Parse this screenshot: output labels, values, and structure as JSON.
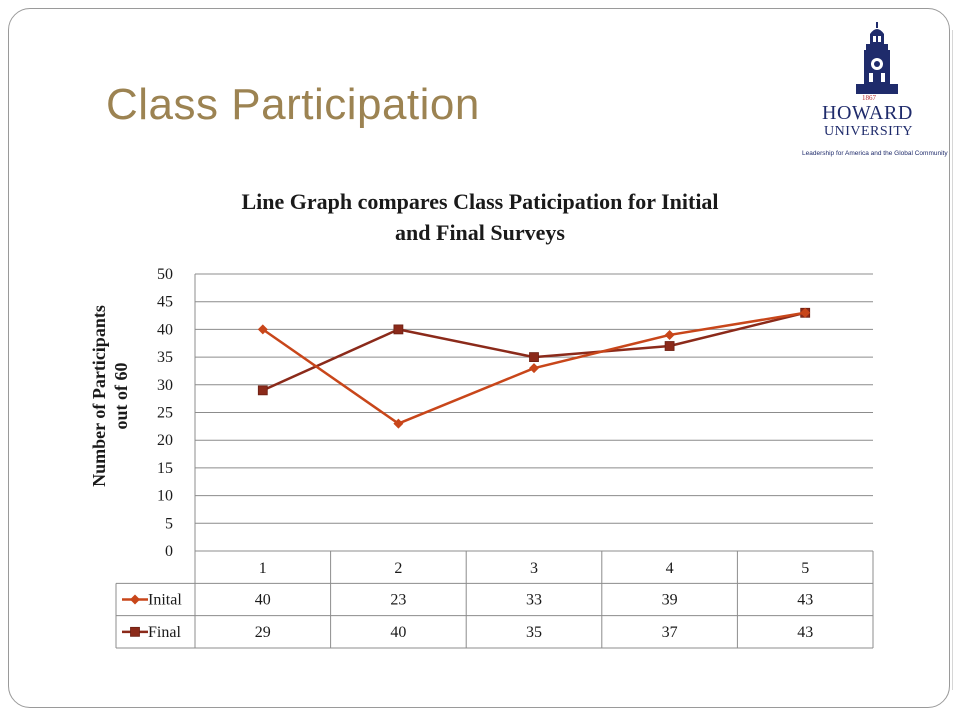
{
  "slide": {
    "title": "Class Participation"
  },
  "logo": {
    "year": "1867",
    "name": "HOWARD",
    "subtitle": "UNIVERSITY",
    "motto": "Leadership for America and the Global Community"
  },
  "colors": {
    "title": "#9c8352",
    "initial_series": "#c8461a",
    "final_series": "#8b2a1a",
    "logo_blue": "#1f2b6b"
  },
  "chart_data": {
    "type": "line",
    "title": "Line Graph compares Class Paticipation for Initial and Final Surveys",
    "title_lines": [
      "Line Graph compares Class Paticipation for Initial",
      "and Final Surveys"
    ],
    "ylabel_lines": [
      "Number of Participants",
      "out of 60"
    ],
    "xlabel": "",
    "categories": [
      "1",
      "2",
      "3",
      "4",
      "5"
    ],
    "ylim": [
      0,
      50
    ],
    "yticks": [
      0,
      5,
      10,
      15,
      20,
      25,
      30,
      35,
      40,
      45,
      50
    ],
    "grid": true,
    "legend": "data-table",
    "series": [
      {
        "name": "Inital",
        "marker": "diamond",
        "values": [
          40,
          23,
          33,
          39,
          43
        ]
      },
      {
        "name": "Final",
        "marker": "square",
        "values": [
          29,
          40,
          35,
          37,
          43
        ]
      }
    ]
  }
}
